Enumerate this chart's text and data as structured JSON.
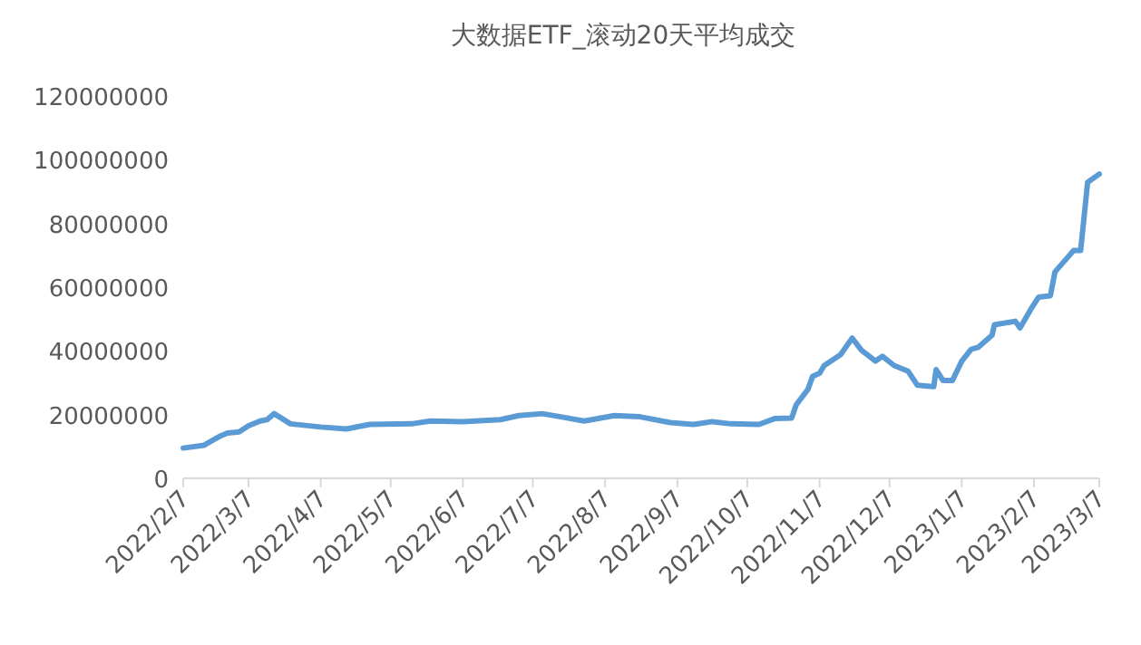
{
  "chart_data": {
    "type": "line",
    "title": "大数据ETF_滚动20天平均成交",
    "x": [
      "2022-02-07",
      "2022-02-16",
      "2022-02-23",
      "2022-02-26",
      "2022-03-03",
      "2022-03-07",
      "2022-03-12",
      "2022-03-15",
      "2022-03-18",
      "2022-03-25",
      "2022-04-07",
      "2022-04-18",
      "2022-04-28",
      "2022-05-16",
      "2022-05-24",
      "2022-06-07",
      "2022-06-23",
      "2022-07-01",
      "2022-07-11",
      "2022-07-19",
      "2022-07-29",
      "2022-08-11",
      "2022-08-22",
      "2022-09-04",
      "2022-09-14",
      "2022-09-22",
      "2022-09-30",
      "2022-10-12",
      "2022-10-19",
      "2022-10-26",
      "2022-10-28",
      "2022-11-02",
      "2022-11-04",
      "2022-11-07",
      "2022-11-09",
      "2022-11-16",
      "2022-11-21",
      "2022-11-25",
      "2022-12-01",
      "2022-12-04",
      "2022-12-09",
      "2022-12-15",
      "2022-12-19",
      "2022-12-26",
      "2022-12-27",
      "2022-12-30",
      "2023-01-03",
      "2023-01-07",
      "2023-01-11",
      "2023-01-14",
      "2023-01-20",
      "2023-01-21",
      "2023-01-30",
      "2023-02-01",
      "2023-02-06",
      "2023-02-09",
      "2023-02-14",
      "2023-02-16",
      "2023-02-21",
      "2023-02-24",
      "2023-02-27",
      "2023-03-02",
      "2023-03-07"
    ],
    "series": [
      {
        "color": "#5b9bd5",
        "values": [
          9500000,
          10400000,
          13300000,
          14200000,
          14600000,
          16500000,
          18000000,
          18400000,
          20300000,
          17100000,
          16100000,
          15500000,
          16900000,
          17100000,
          18000000,
          17800000,
          18400000,
          19700000,
          20300000,
          19300000,
          18000000,
          19700000,
          19300000,
          17500000,
          16900000,
          17800000,
          17100000,
          16900000,
          18800000,
          18900000,
          23100000,
          27900000,
          32000000,
          33000000,
          35400000,
          38800000,
          44000000,
          40200000,
          36800000,
          38300000,
          35400000,
          33600000,
          29200000,
          28800000,
          34100000,
          30700000,
          30700000,
          36800000,
          40500000,
          41100000,
          44900000,
          48200000,
          49300000,
          47200000,
          53500000,
          56900000,
          57300000,
          64800000,
          69000000,
          71500000,
          71500000,
          92900000,
          95500000
        ]
      }
    ],
    "xlim": [
      "2022-02-07",
      "2023-03-07"
    ],
    "xticks": [
      {
        "value": "2022-02-07",
        "label": "2022/2/7"
      },
      {
        "value": "2022-03-07",
        "label": "2022/3/7"
      },
      {
        "value": "2022-04-07",
        "label": "2022/4/7"
      },
      {
        "value": "2022-05-07",
        "label": "2022/5/7"
      },
      {
        "value": "2022-06-07",
        "label": "2022/6/7"
      },
      {
        "value": "2022-07-07",
        "label": "2022/7/7"
      },
      {
        "value": "2022-08-07",
        "label": "2022/8/7"
      },
      {
        "value": "2022-09-07",
        "label": "2022/9/7"
      },
      {
        "value": "2022-10-07",
        "label": "2022/10/7"
      },
      {
        "value": "2022-11-07",
        "label": "2022/11/7"
      },
      {
        "value": "2022-12-07",
        "label": "2022/12/7"
      },
      {
        "value": "2023-01-07",
        "label": "2023/1/7"
      },
      {
        "value": "2023-02-07",
        "label": "2023/2/7"
      },
      {
        "value": "2023-03-07",
        "label": "2023/3/7"
      }
    ],
    "ylim": [
      0,
      120000000
    ],
    "yticks": [
      0,
      20000000,
      40000000,
      60000000,
      80000000,
      100000000,
      120000000
    ],
    "grid": false,
    "marker": "none",
    "line_style": "solid"
  }
}
